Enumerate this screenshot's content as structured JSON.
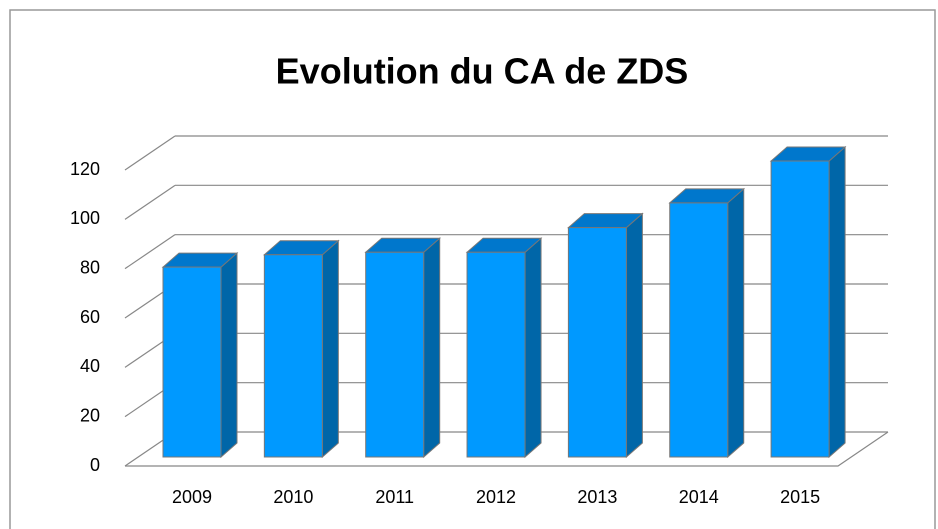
{
  "chart_data": {
    "type": "bar",
    "title": "Evolution du CA de ZDS",
    "categories": [
      "2009",
      "2010",
      "2011",
      "2012",
      "2013",
      "2014",
      "2015"
    ],
    "values": [
      77,
      82,
      83,
      83,
      93,
      103,
      120
    ],
    "color": "#0099ff",
    "ylim": [
      0,
      120
    ],
    "yticks": [
      0,
      20,
      40,
      60,
      80,
      100,
      120
    ],
    "grid": true
  }
}
